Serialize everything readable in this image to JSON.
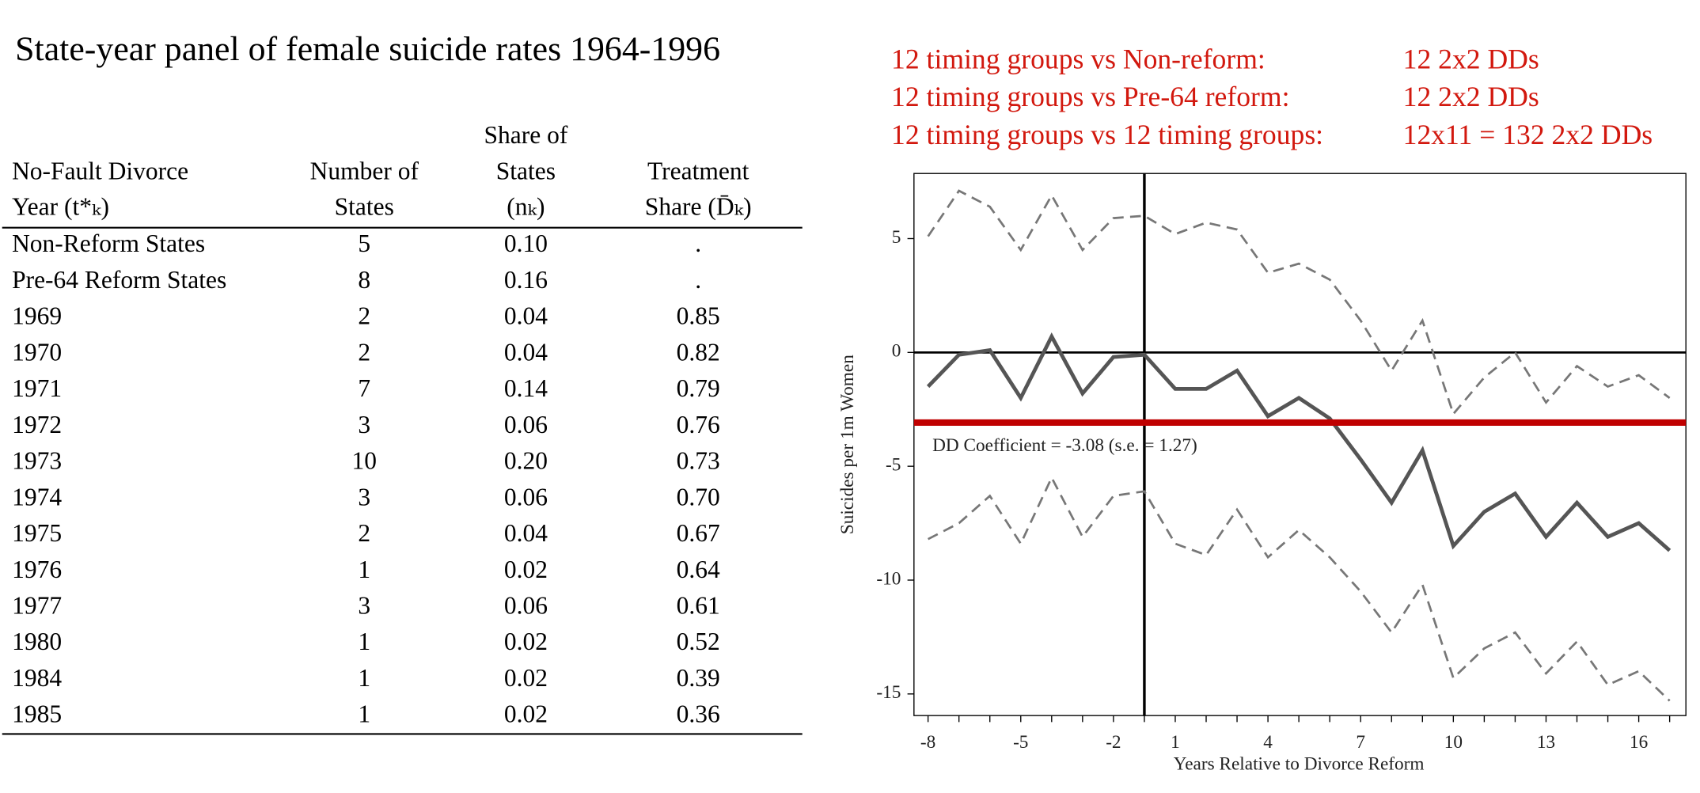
{
  "title": "State-year panel of female suicide rates 1964-1996",
  "table": {
    "header": [
      [
        "No-Fault Divorce",
        "Year (t*ₖ)"
      ],
      [
        "Number of",
        "States"
      ],
      [
        "Share of",
        "States",
        "(nₖ)"
      ],
      [
        "Treatment",
        "Share (D̄ₖ)"
      ]
    ],
    "rows": [
      [
        "Non-Reform States",
        "5",
        "0.10",
        "."
      ],
      [
        "Pre-64 Reform States",
        "8",
        "0.16",
        "."
      ],
      [
        "1969",
        "2",
        "0.04",
        "0.85"
      ],
      [
        "1970",
        "2",
        "0.04",
        "0.82"
      ],
      [
        "1971",
        "7",
        "0.14",
        "0.79"
      ],
      [
        "1972",
        "3",
        "0.06",
        "0.76"
      ],
      [
        "1973",
        "10",
        "0.20",
        "0.73"
      ],
      [
        "1974",
        "3",
        "0.06",
        "0.70"
      ],
      [
        "1975",
        "2",
        "0.04",
        "0.67"
      ],
      [
        "1976",
        "1",
        "0.02",
        "0.64"
      ],
      [
        "1977",
        "3",
        "0.06",
        "0.61"
      ],
      [
        "1980",
        "1",
        "0.02",
        "0.52"
      ],
      [
        "1984",
        "1",
        "0.02",
        "0.39"
      ],
      [
        "1985",
        "1",
        "0.02",
        "0.36"
      ]
    ]
  },
  "comparisons": [
    [
      "12 timing groups vs Non-reform:",
      "12 2x2 DDs"
    ],
    [
      "12 timing groups vs Pre-64 reform:",
      "12 2x2 DDs"
    ],
    [
      "12 timing groups vs 12 timing groups:",
      "12x11 = 132 2x2 DDs"
    ]
  ],
  "chart_data": {
    "type": "line",
    "xlabel": "Years Relative to Divorce Reform",
    "ylabel": "Suicides per 1m Women",
    "annotation": "DD Coefficient = -3.08 (s.e. = 1.27)",
    "reference_line": {
      "value": -3.08,
      "color": "#c00000"
    },
    "categories": [
      "-8",
      null,
      null,
      "-5",
      null,
      null,
      "-2",
      null,
      "1",
      null,
      null,
      "4",
      null,
      null,
      "7",
      null,
      null,
      "10",
      null,
      null,
      "13",
      null,
      null,
      "16",
      null
    ],
    "ylim": [
      -15.95,
      7.86
    ],
    "yticks": [
      5,
      0,
      -5,
      -10,
      -15
    ],
    "series": [
      {
        "name": "Estimate",
        "color": "#555555",
        "style": "solid",
        "values": [
          -1.5,
          -0.1,
          0.1,
          -2.0,
          0.7,
          -1.8,
          -0.2,
          -0.1,
          -1.6,
          -1.6,
          -0.8,
          -2.8,
          -2.0,
          -2.9,
          -4.7,
          -6.6,
          -4.3,
          -8.5,
          -7.0,
          -6.2,
          -8.1,
          -6.6,
          -8.1,
          -7.5,
          -8.7
        ]
      },
      {
        "name": "Upper CI",
        "color": "#777777",
        "style": "dashed",
        "values": [
          5.1,
          7.1,
          6.4,
          4.5,
          6.9,
          4.5,
          5.9,
          6.0,
          5.2,
          5.7,
          5.4,
          3.5,
          3.9,
          3.2,
          1.4,
          -0.8,
          1.4,
          -2.7,
          -1.1,
          0.0,
          -2.2,
          -0.6,
          -1.5,
          -1.0,
          -2.0
        ]
      },
      {
        "name": "Lower CI",
        "color": "#777777",
        "style": "dashed",
        "values": [
          -8.2,
          -7.5,
          -6.3,
          -8.4,
          -5.5,
          -8.1,
          -6.3,
          -6.1,
          -8.4,
          -8.9,
          -6.9,
          -9.0,
          -7.8,
          -9.0,
          -10.5,
          -12.3,
          -10.2,
          -14.3,
          -13.0,
          -12.3,
          -14.1,
          -12.7,
          -14.6,
          -14.0,
          -15.3
        ]
      }
    ]
  }
}
